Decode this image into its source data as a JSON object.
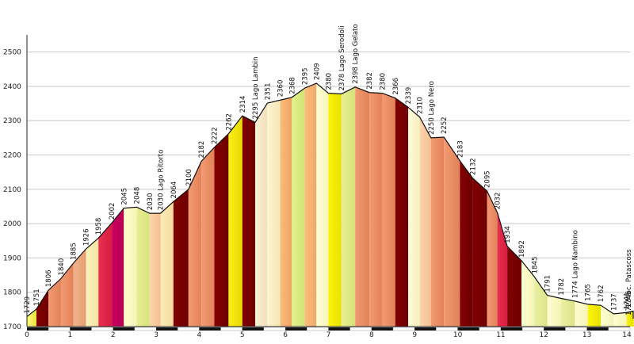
{
  "chart_data": {
    "type": "area",
    "title": "",
    "xlabel": "",
    "ylabel": "",
    "xlim": [
      0,
      14
    ],
    "ylim": [
      1700,
      2550
    ],
    "grid": "horizontal",
    "y_ticks": [
      "1700",
      "1800",
      "1900",
      "2000",
      "2100",
      "2200",
      "2300",
      "2400",
      "2500"
    ],
    "x_ticks": [
      "0",
      "1",
      "2",
      "3",
      "4",
      "5",
      "6",
      "7",
      "8",
      "9",
      "10",
      "11",
      "12",
      "13",
      "14"
    ],
    "profile": [
      [
        0.0,
        1729
      ],
      [
        0.22,
        1751
      ],
      [
        0.5,
        1806
      ],
      [
        0.79,
        1840
      ],
      [
        1.08,
        1885
      ],
      [
        1.37,
        1926
      ],
      [
        1.66,
        1958
      ],
      [
        1.97,
        2002
      ],
      [
        2.25,
        2045
      ],
      [
        2.55,
        2048
      ],
      [
        2.85,
        2030
      ],
      [
        3.1,
        2030
      ],
      [
        3.4,
        2064
      ],
      [
        3.75,
        2100
      ],
      [
        4.05,
        2182
      ],
      [
        4.35,
        2222
      ],
      [
        4.68,
        2262
      ],
      [
        5.0,
        2314
      ],
      [
        5.3,
        2295
      ],
      [
        5.58,
        2351
      ],
      [
        5.88,
        2360
      ],
      [
        6.15,
        2368
      ],
      [
        6.45,
        2395
      ],
      [
        6.72,
        2409
      ],
      [
        7.0,
        2380
      ],
      [
        7.3,
        2378
      ],
      [
        7.62,
        2398
      ],
      [
        7.95,
        2382
      ],
      [
        8.25,
        2380
      ],
      [
        8.55,
        2366
      ],
      [
        8.85,
        2339
      ],
      [
        9.12,
        2310
      ],
      [
        9.38,
        2250
      ],
      [
        9.68,
        2252
      ],
      [
        10.05,
        2183
      ],
      [
        10.35,
        2132
      ],
      [
        10.68,
        2095
      ],
      [
        10.92,
        2032
      ],
      [
        11.15,
        1934
      ],
      [
        11.48,
        1892
      ],
      [
        11.78,
        1845
      ],
      [
        12.08,
        1791
      ],
      [
        12.4,
        1782
      ],
      [
        12.72,
        1774
      ],
      [
        13.02,
        1765
      ],
      [
        13.32,
        1762
      ],
      [
        13.62,
        1737
      ],
      [
        13.92,
        1741
      ],
      [
        14.25,
        1745
      ],
      [
        14.65,
        1723
      ]
    ],
    "segments": [
      [
        "#fcfa82",
        "#f0e438"
      ],
      [
        "#820000",
        "#6e0000"
      ],
      [
        "#f29a72",
        "#e28258"
      ],
      [
        "#f29a72",
        "#e28258"
      ],
      [
        "#f0b48a",
        "#e49c70"
      ],
      [
        "#fcf2be",
        "#f4e2a2"
      ],
      [
        "#e83050",
        "#d81c40"
      ],
      [
        "#cc0062",
        "#b40052"
      ],
      [
        "#fefecf",
        "#f4f4b8"
      ],
      [
        "#e8ee92",
        "#d8e47a"
      ],
      [
        "#fcd4ac",
        "#f4c090"
      ],
      [
        "#fcebb6",
        "#f4dc9e"
      ],
      [
        "#820000",
        "#6e0000"
      ],
      [
        "#f29a72",
        "#e28258"
      ],
      [
        "#f29a72",
        "#e28258"
      ],
      [
        "#820000",
        "#6e0000"
      ],
      [
        "#fbef18",
        "#e6da00"
      ],
      [
        "#820000",
        "#6e0000"
      ],
      [
        "#fbf0d6",
        "#f2e0bc"
      ],
      [
        "#fef4d2",
        "#f6e6b6"
      ],
      [
        "#f9bb7a",
        "#efa460"
      ],
      [
        "#e2f28e",
        "#d0e474"
      ],
      [
        "#fbbd80",
        "#f0a866"
      ],
      [
        "#fefed6",
        "#f6f6bc"
      ],
      [
        "#fbf50a",
        "#e8e000"
      ],
      [
        "#e6f092",
        "#d6e27a"
      ],
      [
        "#f29a72",
        "#e28258"
      ],
      [
        "#f29a72",
        "#e28258"
      ],
      [
        "#f29a72",
        "#e28258"
      ],
      [
        "#820000",
        "#6e0000"
      ],
      [
        "#fdfbd8",
        "#f5f0be"
      ],
      [
        "#fcd4ac",
        "#f4c090"
      ],
      [
        "#f29a72",
        "#e28258"
      ],
      [
        "#f29a72",
        "#e28258"
      ],
      [
        "#820000",
        "#6e0000"
      ],
      [
        "#820000",
        "#6e0000"
      ],
      [
        "#f29a72",
        "#e28258"
      ],
      [
        "#e83050",
        "#d81c40"
      ],
      [
        "#820000",
        "#6e0000"
      ],
      [
        "#fefecf",
        "#f4f4b8"
      ],
      [
        "#eaf0a2",
        "#dce48a"
      ],
      [
        "#fefecf",
        "#f4f4b8"
      ],
      [
        "#eaf0a2",
        "#dce48a"
      ],
      [
        "#fefecf",
        "#f4f4b8"
      ],
      [
        "#fbf50a",
        "#e8e000"
      ],
      [
        "#fefecf",
        "#f4f4b8"
      ],
      [
        "#fefecf",
        "#f4f4b8"
      ],
      [
        "#fbf218",
        "#e8de00"
      ],
      [
        "#fbf218",
        "#e8de00"
      ]
    ],
    "point_labels": [
      {
        "x": 0.0,
        "y": 1729,
        "text": "1729"
      },
      {
        "x": 0.22,
        "y": 1751,
        "text": "1751"
      },
      {
        "x": 0.5,
        "y": 1806,
        "text": "1806"
      },
      {
        "x": 0.79,
        "y": 1840,
        "text": "1840"
      },
      {
        "x": 1.08,
        "y": 1885,
        "text": "1885"
      },
      {
        "x": 1.37,
        "y": 1926,
        "text": "1926"
      },
      {
        "x": 1.66,
        "y": 1958,
        "text": "1958"
      },
      {
        "x": 1.97,
        "y": 2002,
        "text": "2002"
      },
      {
        "x": 2.25,
        "y": 2045,
        "text": "2045"
      },
      {
        "x": 2.55,
        "y": 2048,
        "text": "2048"
      },
      {
        "x": 2.85,
        "y": 2030,
        "text": "2030"
      },
      {
        "x": 3.1,
        "y": 2030,
        "text": "2030 Lago Ritorto"
      },
      {
        "x": 3.4,
        "y": 2064,
        "text": "2064"
      },
      {
        "x": 3.75,
        "y": 2100,
        "text": "2100"
      },
      {
        "x": 4.05,
        "y": 2182,
        "text": "2182"
      },
      {
        "x": 4.35,
        "y": 2222,
        "text": "2222"
      },
      {
        "x": 4.68,
        "y": 2262,
        "text": "2262"
      },
      {
        "x": 5.0,
        "y": 2314,
        "text": "2314"
      },
      {
        "x": 5.3,
        "y": 2295,
        "text": "2295 Lago Lambin"
      },
      {
        "x": 5.58,
        "y": 2351,
        "text": "2351"
      },
      {
        "x": 5.88,
        "y": 2360,
        "text": "2360"
      },
      {
        "x": 6.15,
        "y": 2368,
        "text": "2368"
      },
      {
        "x": 6.45,
        "y": 2395,
        "text": "2395"
      },
      {
        "x": 6.72,
        "y": 2409,
        "text": "2409"
      },
      {
        "x": 7.0,
        "y": 2380,
        "text": "2380"
      },
      {
        "x": 7.3,
        "y": 2378,
        "text": "2378 Lago Serodoli"
      },
      {
        "x": 7.62,
        "y": 2398,
        "text": "2398 Lago Gelato"
      },
      {
        "x": 7.95,
        "y": 2382,
        "text": "2382"
      },
      {
        "x": 8.25,
        "y": 2380,
        "text": "2380"
      },
      {
        "x": 8.55,
        "y": 2366,
        "text": "2366"
      },
      {
        "x": 8.85,
        "y": 2339,
        "text": "2339"
      },
      {
        "x": 9.12,
        "y": 2310,
        "text": "2310"
      },
      {
        "x": 9.38,
        "y": 2250,
        "text": "2250 Lago Nero"
      },
      {
        "x": 9.68,
        "y": 2252,
        "text": "2252"
      },
      {
        "x": 10.05,
        "y": 2183,
        "text": "2183"
      },
      {
        "x": 10.35,
        "y": 2132,
        "text": "2132"
      },
      {
        "x": 10.68,
        "y": 2095,
        "text": "2095"
      },
      {
        "x": 10.92,
        "y": 2032,
        "text": "2032"
      },
      {
        "x": 11.15,
        "y": 1934,
        "text": "1934"
      },
      {
        "x": 11.48,
        "y": 1892,
        "text": "1892"
      },
      {
        "x": 11.78,
        "y": 1845,
        "text": "1845"
      },
      {
        "x": 12.08,
        "y": 1791,
        "text": "1791"
      },
      {
        "x": 12.4,
        "y": 1782,
        "text": "1782"
      },
      {
        "x": 12.72,
        "y": 1774,
        "text": "1774 Lago Nambino"
      },
      {
        "x": 13.02,
        "y": 1765,
        "text": "1765"
      },
      {
        "x": 13.32,
        "y": 1762,
        "text": "1762"
      },
      {
        "x": 13.62,
        "y": 1737,
        "text": "1737"
      },
      {
        "x": 13.92,
        "y": 1741,
        "text": "1741"
      },
      {
        "x": 14.25,
        "y": 1745,
        "text": "1745"
      },
      {
        "x": 14.65,
        "y": 1723,
        "text": "1723 loc. Patascoss"
      }
    ]
  }
}
